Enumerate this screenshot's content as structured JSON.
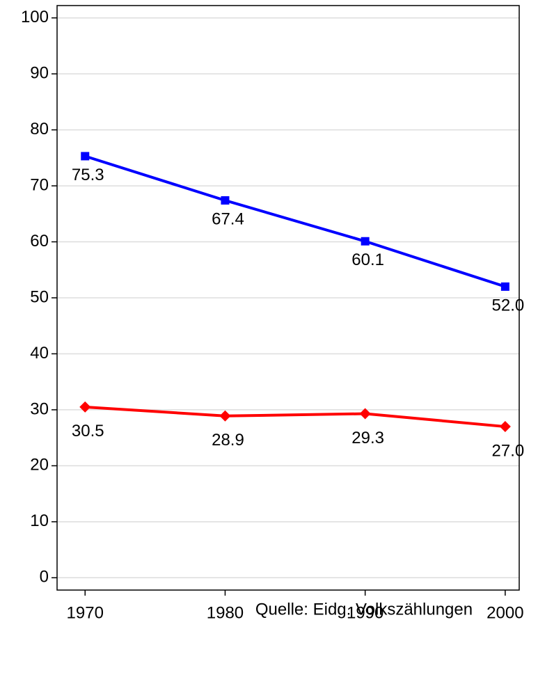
{
  "chart_data": {
    "type": "line",
    "x": [
      1970,
      1980,
      1990,
      2000
    ],
    "series": [
      {
        "color": "#0000ff",
        "marker": "square",
        "values": [
          75.3,
          67.4,
          60.1,
          52.0
        ],
        "value_labels": [
          "75.3",
          "67.4",
          "60.1",
          "52.0"
        ]
      },
      {
        "color": "#ff0000",
        "marker": "diamond",
        "values": [
          30.5,
          28.9,
          29.3,
          27.0
        ],
        "value_labels": [
          "30.5",
          "28.9",
          "29.3",
          "27.0"
        ]
      }
    ],
    "xlim": [
      1968,
      2001
    ],
    "xticks": [
      1970,
      1980,
      1990,
      2000
    ],
    "ylim": [
      -2.2,
      102.2
    ],
    "yticks": [
      0,
      10,
      20,
      30,
      40,
      50,
      60,
      70,
      80,
      90,
      100
    ],
    "grid": true,
    "annotation": "Quelle: Eidg. Volkszählungen"
  }
}
